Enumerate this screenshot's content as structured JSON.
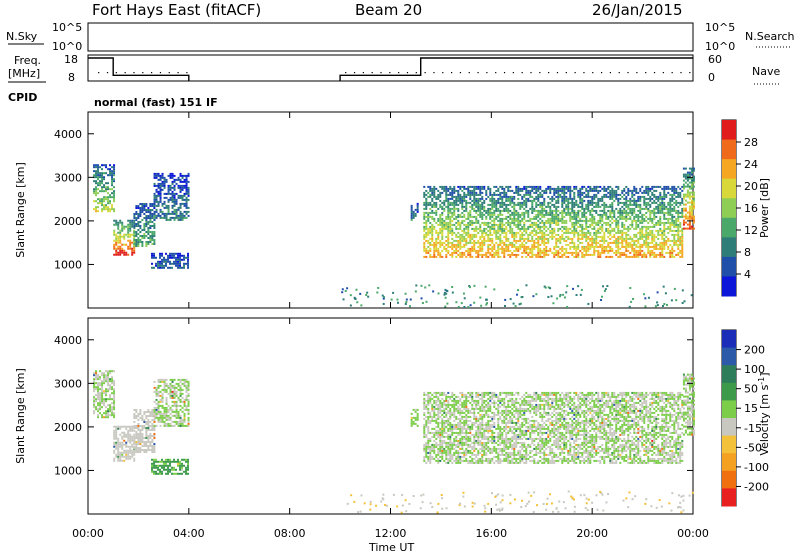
{
  "header": {
    "title": "Fort Hays East (fitACF)",
    "beam": "Beam 20",
    "date": "26/Jan/2015"
  },
  "params": {
    "nsky_label": "N.Sky",
    "nsearch_label": "N.Search",
    "freq_label_line1": "Freq.",
    "freq_label_line2": "[MHz]",
    "nave_label": "Nave",
    "cpid_label": "CPID",
    "cpid_value": "normal (fast) 151 IF",
    "noise_left_ticks": [
      "10^5",
      "10^0"
    ],
    "noise_right_ticks": [
      "10^5",
      "10^0"
    ],
    "freq_ticks": [
      "18",
      "8"
    ],
    "nave_ticks": [
      "60",
      "0"
    ],
    "frequency_series_mhz": [
      {
        "t": 0.0,
        "v": 18
      },
      {
        "t": 1.0,
        "v": 18
      },
      {
        "t": 1.0,
        "v": 10.5
      },
      {
        "t": 4.0,
        "v": 10.5
      },
      {
        "t": 10.0,
        "v": 10.5
      },
      {
        "t": 13.2,
        "v": 10.5
      },
      {
        "t": 13.2,
        "v": 18
      },
      {
        "t": 24.0,
        "v": 18
      }
    ],
    "data_gap_ut": [
      4.0,
      10.0
    ]
  },
  "chart_data": [
    {
      "type": "heatmap",
      "parameter": "Power",
      "xlabel": "",
      "ylabel": "Slant Range [km]",
      "xlim": [
        0,
        24
      ],
      "ylim": [
        0,
        4500
      ],
      "yticks": [
        "1000",
        "2000",
        "3000",
        "4000"
      ],
      "colorbar_label": "Power [dB]",
      "colorbar_ticks": [
        "4",
        "8",
        "12",
        "16",
        "20",
        "24",
        "28"
      ],
      "colorbar_range": [
        0,
        32
      ],
      "colorscale": [
        "#0b16d8",
        "#1f4fa8",
        "#2e7d78",
        "#4aa86a",
        "#8fce55",
        "#d8d83a",
        "#f5a623",
        "#f06a1c",
        "#e01c1c"
      ],
      "echo_regions": [
        {
          "t0": 0.2,
          "t1": 1.0,
          "r0": 2200,
          "r1": 3300,
          "level": 14
        },
        {
          "t0": 1.0,
          "t1": 1.8,
          "r0": 1200,
          "r1": 2000,
          "level": 24
        },
        {
          "t0": 1.8,
          "t1": 2.6,
          "r0": 1400,
          "r1": 2400,
          "level": 10
        },
        {
          "t0": 2.6,
          "t1": 4.0,
          "r0": 2000,
          "r1": 3100,
          "level": 6
        },
        {
          "t0": 2.5,
          "t1": 4.0,
          "r0": 900,
          "r1": 1250,
          "level": 4
        },
        {
          "t0": 12.8,
          "t1": 13.1,
          "r0": 2000,
          "r1": 2400,
          "level": 6
        },
        {
          "t0": 13.3,
          "t1": 23.6,
          "r0": 1150,
          "r1": 2800,
          "level": 18
        },
        {
          "t0": 23.6,
          "t1": 24.0,
          "r0": 1800,
          "r1": 3200,
          "level": 22
        }
      ]
    },
    {
      "type": "heatmap",
      "parameter": "Velocity",
      "xlabel": "Time UT",
      "ylabel": "Slant Range [km]",
      "xlim": [
        0,
        24
      ],
      "ylim": [
        0,
        4500
      ],
      "xticks": [
        "00:00",
        "04:00",
        "08:00",
        "12:00",
        "16:00",
        "20:00",
        "00:00"
      ],
      "yticks": [
        "1000",
        "2000",
        "3000",
        "4000"
      ],
      "colorbar_label": "Velocity [m s^-1]",
      "colorbar_ticks": [
        "200",
        "100",
        "50",
        "15",
        "-15",
        "-50",
        "-100",
        "-200"
      ],
      "colorbar_range": [
        -250,
        250
      ],
      "colorscale": [
        "#1a2cb8",
        "#2c5aa8",
        "#2e7d5a",
        "#3c9a4a",
        "#7ccd4a",
        "#c8c8c0",
        "#f4c23a",
        "#f4a020",
        "#f07010",
        "#e82020"
      ],
      "echo_regions": [
        {
          "t0": 0.2,
          "t1": 1.0,
          "r0": 2200,
          "r1": 3300,
          "v": 0
        },
        {
          "t0": 1.0,
          "t1": 1.8,
          "r0": 1200,
          "r1": 2000,
          "v": -40
        },
        {
          "t0": 1.8,
          "t1": 2.6,
          "r0": 1400,
          "r1": 2400,
          "v": -20
        },
        {
          "t0": 2.6,
          "t1": 4.0,
          "r0": 2000,
          "r1": 3100,
          "v": 0
        },
        {
          "t0": 2.5,
          "t1": 4.0,
          "r0": 900,
          "r1": 1250,
          "v": 60
        },
        {
          "t0": 12.8,
          "t1": 13.1,
          "r0": 2000,
          "r1": 2400,
          "v": 30
        },
        {
          "t0": 13.3,
          "t1": 23.6,
          "r0": 1150,
          "r1": 2800,
          "v": 0
        },
        {
          "t0": 23.6,
          "t1": 24.0,
          "r0": 1800,
          "r1": 3200,
          "v": 0
        }
      ]
    }
  ]
}
